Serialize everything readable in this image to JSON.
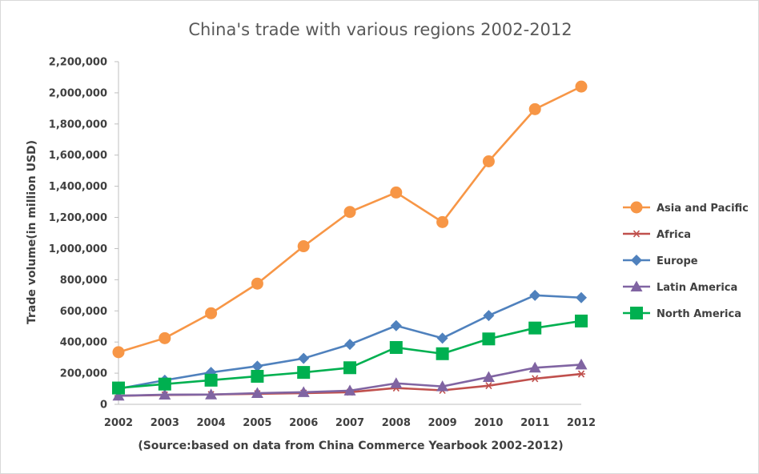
{
  "chart_data": {
    "type": "line",
    "title": "China's trade with various regions 2002-2012",
    "xlabel": "(Source:based on data from China Commerce Yearbook 2002-2012)",
    "ylabel": "Trade volume(in million USD)",
    "ylim": [
      0,
      2200000
    ],
    "y_tick_labels": [
      "0",
      "200,000",
      "400,000",
      "600,000",
      "800,000",
      "1,000,000",
      "1,200,000",
      "1,400,000",
      "1,600,000",
      "1,800,000",
      "2,000,000",
      "2,200,000"
    ],
    "categories": [
      "2002",
      "2003",
      "2004",
      "2005",
      "2006",
      "2007",
      "2008",
      "2009",
      "2010",
      "2011",
      "2012"
    ],
    "grid": false,
    "legend_position": "right",
    "series": [
      {
        "name": "Asia and Pacific",
        "color": "#f79646",
        "marker": "circle",
        "values": [
          335000,
          425000,
          585000,
          775000,
          1015000,
          1235000,
          1360000,
          1170000,
          1560000,
          1895000,
          2040000
        ]
      },
      {
        "name": "Africa",
        "color": "#c0504d",
        "marker": "star",
        "values": [
          55000,
          60000,
          63000,
          68000,
          72000,
          78000,
          105000,
          90000,
          120000,
          165000,
          195000
        ]
      },
      {
        "name": "Europe",
        "color": "#4f81bd",
        "marker": "diamond",
        "values": [
          100000,
          155000,
          205000,
          245000,
          295000,
          385000,
          505000,
          425000,
          570000,
          700000,
          685000
        ]
      },
      {
        "name": "Latin America",
        "color": "#8064a2",
        "marker": "triangle",
        "values": [
          55000,
          62000,
          63000,
          72000,
          78000,
          88000,
          135000,
          115000,
          175000,
          235000,
          255000
        ]
      },
      {
        "name": "North America",
        "color": "#00b050",
        "marker": "square",
        "values": [
          105000,
          130000,
          155000,
          180000,
          205000,
          235000,
          365000,
          325000,
          420000,
          490000,
          535000
        ]
      }
    ]
  }
}
